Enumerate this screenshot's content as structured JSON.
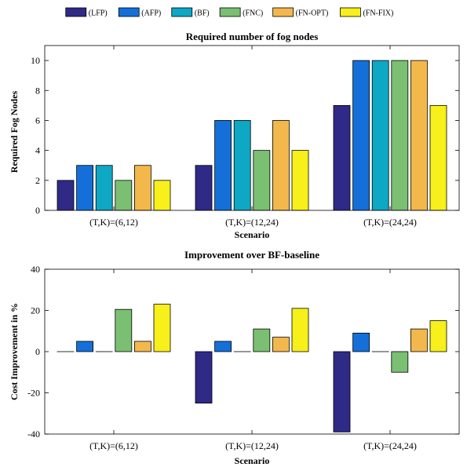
{
  "legend": [
    {
      "name": "(LFP)",
      "color": "#2e2a86"
    },
    {
      "name": "(AFP)",
      "color": "#1470d8"
    },
    {
      "name": "(BF)",
      "color": "#0ea7c4"
    },
    {
      "name": "(FNC)",
      "color": "#7bbf72"
    },
    {
      "name": "(FN-OPT)",
      "color": "#f2b84b"
    },
    {
      "name": "(FN-FIX)",
      "color": "#f7f01a"
    }
  ],
  "chart_data": [
    {
      "type": "bar",
      "title": "Required number of fog nodes",
      "xlabel": "Scenario",
      "ylabel": "Required Fog Nodes",
      "categories": [
        "(T,K)=(6,12)",
        "(T,K)=(12,24)",
        "(T,K)=(24,24)"
      ],
      "ylim": [
        0,
        11
      ],
      "yticks": [
        0,
        2,
        4,
        6,
        8,
        10
      ],
      "grid": false,
      "legend_position": "top",
      "series": [
        {
          "name": "(LFP)",
          "values": [
            2,
            3,
            7
          ]
        },
        {
          "name": "(AFP)",
          "values": [
            3,
            6,
            10
          ]
        },
        {
          "name": "(BF)",
          "values": [
            3,
            6,
            10
          ]
        },
        {
          "name": "(FNC)",
          "values": [
            2,
            4,
            10
          ]
        },
        {
          "name": "(FN-OPT)",
          "values": [
            3,
            6,
            10
          ]
        },
        {
          "name": "(FN-FIX)",
          "values": [
            2,
            4,
            7
          ]
        }
      ]
    },
    {
      "type": "bar",
      "title": "Improvement over BF-baseline",
      "xlabel": "Scenario",
      "ylabel": "Cost Improvement in %",
      "categories": [
        "(T,K)=(6,12)",
        "(T,K)=(12,24)",
        "(T,K)=(24,24)"
      ],
      "ylim": [
        -40,
        40
      ],
      "yticks": [
        -40,
        -20,
        0,
        20,
        40
      ],
      "grid": false,
      "legend_position": "top",
      "series": [
        {
          "name": "(LFP)",
          "values": [
            0,
            -25,
            -39
          ]
        },
        {
          "name": "(AFP)",
          "values": [
            5,
            5,
            9
          ]
        },
        {
          "name": "(BF)",
          "values": [
            0,
            0,
            0
          ]
        },
        {
          "name": "(FNC)",
          "values": [
            20.5,
            11,
            -10
          ]
        },
        {
          "name": "(FN-OPT)",
          "values": [
            5,
            7,
            11
          ]
        },
        {
          "name": "(FN-FIX)",
          "values": [
            23,
            21,
            15
          ]
        }
      ]
    }
  ]
}
